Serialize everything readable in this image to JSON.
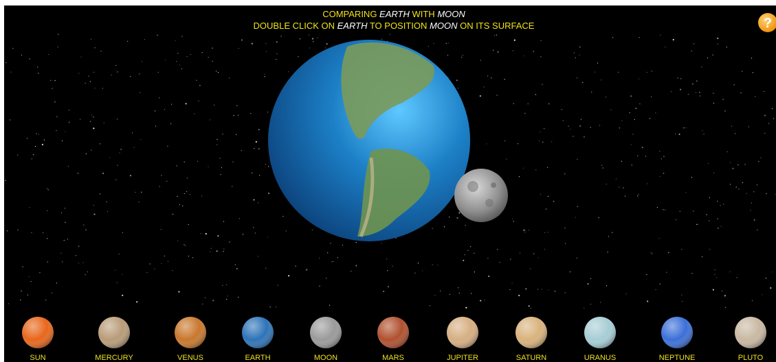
{
  "header": {
    "line1": [
      {
        "text": "COMPARING ",
        "highlight": false
      },
      {
        "text": "EARTH",
        "highlight": true
      },
      {
        "text": " WITH ",
        "highlight": false
      },
      {
        "text": "MOON",
        "highlight": true
      }
    ],
    "line2": [
      {
        "text": "DOUBLE CLICK ON ",
        "highlight": false
      },
      {
        "text": "EARTH",
        "highlight": true
      },
      {
        "text": " TO POSITION ",
        "highlight": false
      },
      {
        "text": "MOON",
        "highlight": true
      },
      {
        "text": " ON ITS SURFACE",
        "highlight": false
      }
    ]
  },
  "help_button": "?",
  "planets": [
    {
      "name": "SUN",
      "color": "#e8661a"
    },
    {
      "name": "MERCURY",
      "color": "#b89c78"
    },
    {
      "name": "VENUS",
      "color": "#c9772c"
    },
    {
      "name": "EARTH",
      "color": "#2d73b8"
    },
    {
      "name": "MOON",
      "color": "#9a9a9a"
    },
    {
      "name": "MARS",
      "color": "#b0502e"
    },
    {
      "name": "JUPITER",
      "color": "#d6ae82"
    },
    {
      "name": "SATURN",
      "color": "#d9b27c"
    },
    {
      "name": "URANUS",
      "color": "#a6cdd4"
    },
    {
      "name": "NEPTUNE",
      "color": "#3b6fd8"
    },
    {
      "name": "PLUTO",
      "color": "#c8b8a2"
    }
  ]
}
